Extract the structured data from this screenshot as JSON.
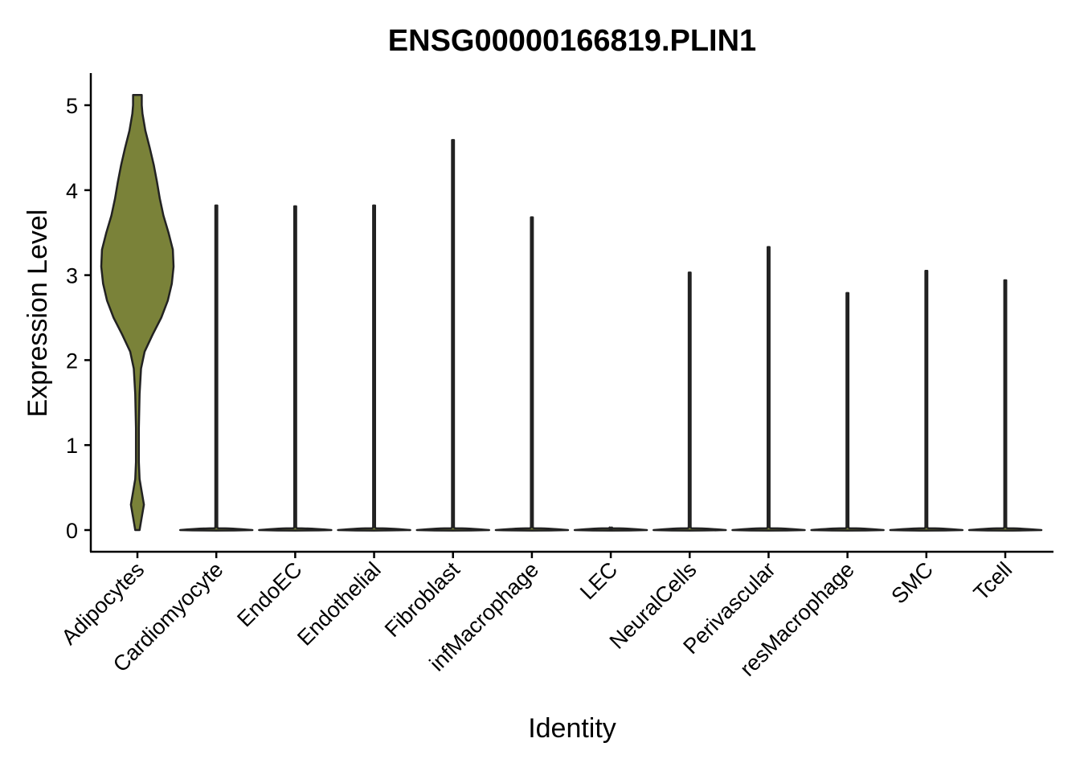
{
  "chart_data": {
    "type": "violin",
    "title": "ENSG00000166819.PLIN1",
    "xlabel": "Identity",
    "ylabel": "Expression Level",
    "ylim": [
      -0.25,
      5.4
    ],
    "yticks": [
      0,
      1,
      2,
      3,
      4,
      5
    ],
    "categories": [
      "Adipocytes",
      "Cardiomyocyte",
      "EndoEC",
      "Endothelial",
      "Fibroblast",
      "infMacrophage",
      "LEC",
      "NeuralCells",
      "Perivascular",
      "resMacrophage",
      "SMC",
      "Tcell"
    ],
    "max_values": [
      5.12,
      3.82,
      3.81,
      3.82,
      4.59,
      3.68,
      0.0,
      3.03,
      3.33,
      2.79,
      3.05,
      2.94
    ],
    "colors": [
      "#7a8239",
      "#7a8239",
      "#7a8239",
      "#7a8239",
      "#7a8239",
      "#7a8239",
      "#7a8239",
      "#7a8239",
      "#7a8239",
      "#7a8239",
      "#7a8239",
      "#7a8239"
    ],
    "grid": false,
    "legend": "none",
    "density_profiles": {
      "Adipocytes": [
        [
          0.0,
          0.06
        ],
        [
          0.15,
          0.12
        ],
        [
          0.3,
          0.18
        ],
        [
          0.45,
          0.12
        ],
        [
          0.6,
          0.06
        ],
        [
          0.8,
          0.04
        ],
        [
          1.2,
          0.04
        ],
        [
          1.6,
          0.06
        ],
        [
          1.9,
          0.1
        ],
        [
          2.1,
          0.2
        ],
        [
          2.3,
          0.42
        ],
        [
          2.5,
          0.66
        ],
        [
          2.7,
          0.84
        ],
        [
          2.9,
          0.95
        ],
        [
          3.1,
          1.0
        ],
        [
          3.3,
          0.98
        ],
        [
          3.5,
          0.86
        ],
        [
          3.7,
          0.72
        ],
        [
          3.9,
          0.62
        ],
        [
          4.1,
          0.54
        ],
        [
          4.3,
          0.45
        ],
        [
          4.5,
          0.34
        ],
        [
          4.7,
          0.22
        ],
        [
          4.9,
          0.14
        ],
        [
          5.0,
          0.12
        ],
        [
          5.12,
          0.12
        ]
      ]
    }
  }
}
